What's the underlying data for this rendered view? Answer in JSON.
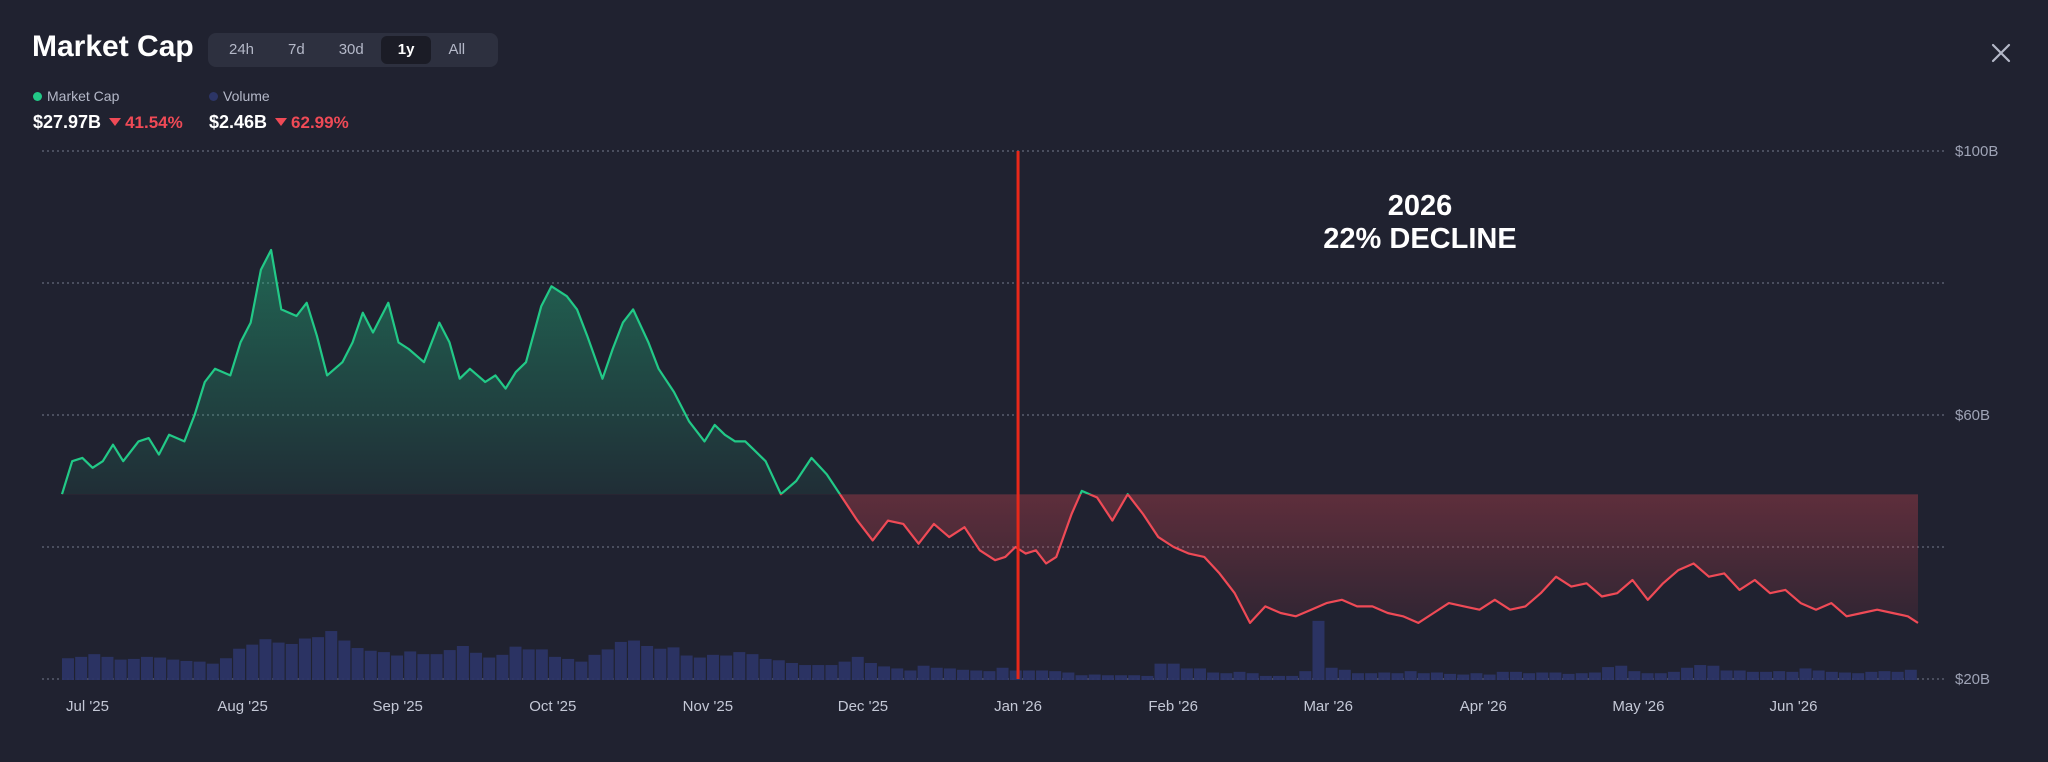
{
  "header": {
    "title": "Market Cap",
    "ranges": [
      "24h",
      "7d",
      "30d",
      "1y",
      "All"
    ],
    "active_range": "1y",
    "close_icon": "close-icon"
  },
  "legend": {
    "market_cap": {
      "label": "Market Cap",
      "color": "#22c987",
      "value": "$27.97B",
      "change": "41.54%"
    },
    "volume": {
      "label": "Volume",
      "color": "#2c3566",
      "value": "$2.46B",
      "change": "62.99%"
    }
  },
  "annotation": {
    "line1": "2026",
    "line2": "22% DECLINE"
  },
  "chart_data": {
    "type": "area",
    "y_ticks": [
      {
        "value": 100,
        "label": "$100B"
      },
      {
        "value": 60,
        "label": "$60B"
      },
      {
        "value": 20,
        "label": "$20B"
      }
    ],
    "ylim": [
      20,
      100
    ],
    "x_ticks": [
      "Jul '25",
      "Aug '25",
      "Sep '25",
      "Oct '25",
      "Nov '25",
      "Dec '25",
      "Jan '26",
      "Feb '26",
      "Mar '26",
      "Apr '26",
      "May '26",
      "Jun '26"
    ],
    "baseline": 48,
    "marker_at": "Jan '26",
    "colors": {
      "up": "#22c987",
      "down": "#ef4a56",
      "marker": "#e8281a",
      "volume": "#2c3566",
      "grid": "#8a8fa3"
    },
    "series": [
      {
        "name": "Market Cap",
        "unit": "$B",
        "x": [
          0,
          2,
          4,
          6,
          8,
          10,
          12,
          15,
          17,
          19,
          21,
          24,
          26,
          28,
          30,
          33,
          35,
          37,
          39,
          41,
          43,
          46,
          48,
          50,
          52,
          55,
          57,
          59,
          61,
          64,
          66,
          68,
          71,
          74,
          76,
          78,
          80,
          83,
          85,
          87,
          89,
          91,
          94,
          96,
          99,
          101,
          103,
          106,
          108,
          110,
          112,
          115,
          117,
          120,
          123,
          126,
          128,
          130,
          132,
          134,
          136,
          138,
          141,
          144,
          147,
          150,
          153,
          156,
          159,
          162,
          165,
          168,
          171,
          174,
          177,
          180,
          183,
          185,
          187,
          189,
          191,
          193,
          195,
          198,
          200,
          203,
          206,
          209,
          212,
          215,
          218,
          221,
          224,
          227,
          230,
          233,
          236,
          239,
          242,
          245,
          248,
          251,
          254,
          257,
          260,
          263,
          266,
          269,
          272,
          275,
          278,
          281,
          284,
          287,
          290,
          293,
          296,
          299,
          302,
          305,
          308,
          311,
          314,
          317,
          320,
          323,
          326,
          329,
          332,
          335,
          338,
          341,
          344,
          347,
          350,
          353,
          356,
          359,
          362,
          364
        ],
        "values": [
          48.0,
          53.0,
          53.5,
          52.0,
          53.0,
          55.5,
          53.0,
          56.0,
          56.5,
          54.0,
          57.0,
          56.0,
          60.0,
          65.0,
          67.0,
          66.0,
          71.0,
          74.0,
          82.0,
          85.0,
          76.0,
          75.0,
          77.0,
          72.0,
          66.0,
          68.0,
          71.0,
          75.5,
          72.5,
          77.0,
          71.0,
          70.0,
          68.0,
          74.0,
          71.0,
          65.5,
          67.0,
          65.0,
          66.0,
          64.0,
          66.5,
          68.0,
          76.5,
          79.5,
          78.0,
          76.0,
          72.0,
          65.5,
          70.0,
          74.0,
          76.0,
          71.0,
          67.0,
          63.5,
          59.0,
          56.0,
          58.5,
          57.0,
          56.0,
          56.0,
          54.5,
          53.0,
          48.0,
          50.0,
          53.5,
          51.0,
          47.5,
          44.0,
          41.0,
          44.0,
          43.5,
          40.5,
          43.5,
          41.5,
          43.0,
          39.5,
          38.0,
          38.5,
          40.0,
          39.0,
          39.5,
          37.5,
          38.5,
          45.0,
          48.5,
          47.5,
          44.0,
          48.0,
          45.0,
          41.5,
          40.0,
          39.0,
          38.5,
          36.0,
          33.0,
          28.5,
          31.0,
          30.0,
          29.5,
          30.5,
          31.5,
          32.0,
          31.0,
          31.0,
          30.0,
          29.5,
          28.5,
          30.0,
          31.5,
          31.0,
          30.5,
          32.0,
          30.5,
          31.0,
          33.0,
          35.5,
          34.0,
          34.5,
          32.5,
          33.0,
          35.0,
          32.0,
          34.5,
          36.5,
          37.5,
          35.5,
          36.0,
          33.5,
          35.0,
          33.0,
          33.5,
          31.5,
          30.5,
          31.5,
          29.5,
          30.0,
          30.5,
          30.0,
          29.5,
          28.5
        ]
      },
      {
        "name": "Volume",
        "unit": "relative",
        "values": [
          0.32,
          0.34,
          0.38,
          0.34,
          0.3,
          0.31,
          0.34,
          0.33,
          0.3,
          0.28,
          0.27,
          0.24,
          0.32,
          0.46,
          0.52,
          0.6,
          0.55,
          0.53,
          0.61,
          0.63,
          0.72,
          0.58,
          0.47,
          0.43,
          0.41,
          0.36,
          0.42,
          0.38,
          0.38,
          0.44,
          0.5,
          0.4,
          0.33,
          0.37,
          0.49,
          0.45,
          0.45,
          0.34,
          0.31,
          0.27,
          0.37,
          0.45,
          0.56,
          0.58,
          0.5,
          0.46,
          0.48,
          0.36,
          0.33,
          0.37,
          0.36,
          0.41,
          0.38,
          0.31,
          0.29,
          0.25,
          0.22,
          0.22,
          0.22,
          0.27,
          0.34,
          0.25,
          0.2,
          0.17,
          0.14,
          0.21,
          0.18,
          0.17,
          0.15,
          0.14,
          0.13,
          0.18,
          0.14,
          0.14,
          0.14,
          0.13,
          0.11,
          0.07,
          0.08,
          0.07,
          0.07,
          0.07,
          0.06,
          0.24,
          0.24,
          0.17,
          0.17,
          0.11,
          0.1,
          0.12,
          0.1,
          0.06,
          0.06,
          0.06,
          0.13,
          0.87,
          0.18,
          0.15,
          0.1,
          0.1,
          0.11,
          0.1,
          0.13,
          0.1,
          0.11,
          0.09,
          0.08,
          0.1,
          0.08,
          0.12,
          0.12,
          0.1,
          0.11,
          0.11,
          0.09,
          0.1,
          0.11,
          0.19,
          0.21,
          0.13,
          0.1,
          0.1,
          0.12,
          0.18,
          0.22,
          0.21,
          0.14,
          0.14,
          0.12,
          0.12,
          0.13,
          0.12,
          0.17,
          0.14,
          0.12,
          0.11,
          0.1,
          0.12,
          0.13,
          0.12,
          0.15
        ]
      }
    ]
  }
}
